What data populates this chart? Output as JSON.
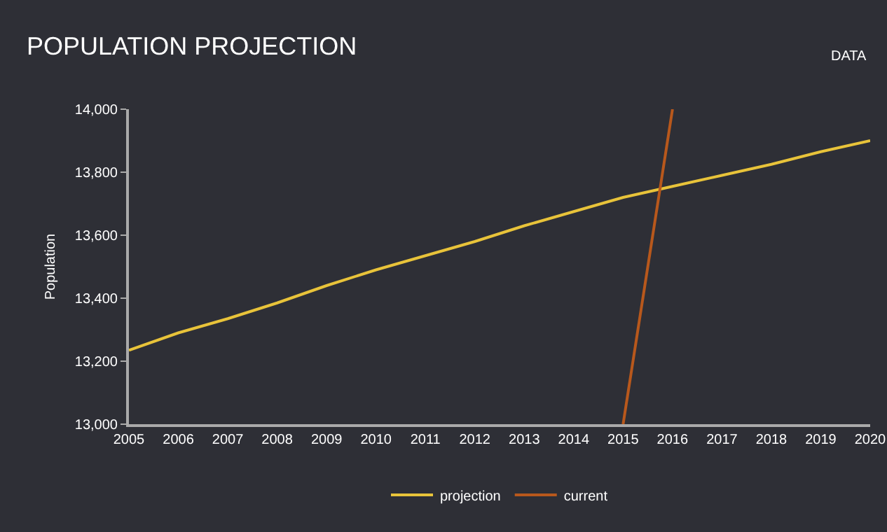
{
  "chart_data": {
    "type": "line",
    "title": "POPULATION PROJECTION",
    "ylabel": "Population",
    "annotations": [
      "DATA"
    ],
    "x": [
      2005,
      2006,
      2007,
      2008,
      2009,
      2010,
      2011,
      2012,
      2013,
      2014,
      2015,
      2016,
      2017,
      2018,
      2019,
      2020
    ],
    "series": [
      {
        "name": "projection",
        "color": "#e8c33a",
        "values": [
          13235,
          13290,
          13335,
          13385,
          13440,
          13490,
          13535,
          13580,
          13630,
          13675,
          13720,
          13755,
          13790,
          13825,
          13865,
          13900
        ]
      },
      {
        "name": "current",
        "color": "#b8581c",
        "x": [
          2015,
          2016
        ],
        "values": [
          13000,
          14000
        ]
      }
    ],
    "xlim": [
      2005,
      2020
    ],
    "xticks": [
      2005,
      2006,
      2007,
      2008,
      2009,
      2010,
      2011,
      2012,
      2013,
      2014,
      2015,
      2016,
      2017,
      2018,
      2019,
      2020
    ],
    "ylim": [
      13000,
      14000
    ],
    "yticks": [
      {
        "value": 13000,
        "label": "13,000"
      },
      {
        "value": 13200,
        "label": "13,200"
      },
      {
        "value": 13400,
        "label": "13,400"
      },
      {
        "value": 13600,
        "label": "13,600"
      },
      {
        "value": 13800,
        "label": "13,800"
      },
      {
        "value": 14000,
        "label": "14,000"
      }
    ],
    "grid": false,
    "legend": "bottom",
    "marker": "none",
    "line_style": "solid"
  }
}
